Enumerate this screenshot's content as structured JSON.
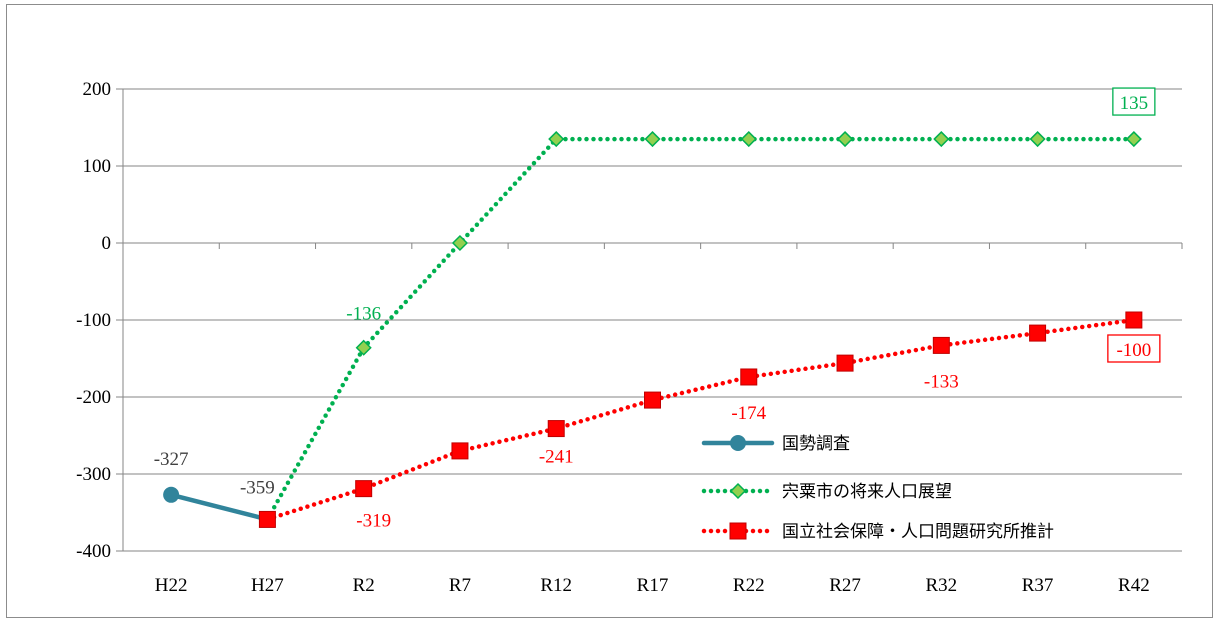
{
  "chart_data": {
    "type": "line",
    "categories": [
      "H22",
      "H27",
      "R2",
      "R7",
      "R12",
      "R17",
      "R22",
      "R27",
      "R32",
      "R37",
      "R42"
    ],
    "ylim": [
      -400,
      200
    ],
    "yticks": [
      200,
      100,
      0,
      -100,
      -200,
      -300,
      -400
    ],
    "ytick_labels": [
      "200",
      "100",
      "0",
      "-100",
      "-200",
      "-300",
      "-400"
    ],
    "grid": "horizontal",
    "legend_position": "bottom-right",
    "series": [
      {
        "name": "国勢調査",
        "color": "#31849b",
        "marker": "circle",
        "line": "solid",
        "values": [
          -327,
          -359,
          null,
          null,
          null,
          null,
          null,
          null,
          null,
          null,
          null
        ]
      },
      {
        "name": "宍粟市の将来人口展望",
        "color": "#00b050",
        "marker_fill": "#92d050",
        "marker": "diamond",
        "line": "dotted",
        "values": [
          null,
          -359,
          -136,
          0,
          135,
          135,
          135,
          135,
          135,
          135,
          135
        ]
      },
      {
        "name": "国立社会保障・人口問題研究所推計",
        "color": "#ff0000",
        "marker": "square",
        "line": "dotted",
        "values": [
          null,
          -359,
          -319,
          -270,
          -241,
          -204,
          -174,
          -156,
          -133,
          -117,
          -100
        ]
      }
    ],
    "data_labels": [
      {
        "series": 0,
        "index": 0,
        "text": "-327",
        "color": "#404040",
        "boxed": false
      },
      {
        "series": 0,
        "index": 1,
        "text": "-359",
        "color": "#404040",
        "boxed": false
      },
      {
        "series": 1,
        "index": 2,
        "text": "-136",
        "color": "#00b050",
        "boxed": false
      },
      {
        "series": 1,
        "index": 10,
        "text": "135",
        "color": "#00b050",
        "boxed": true
      },
      {
        "series": 2,
        "index": 2,
        "text": "-319",
        "color": "#ff0000",
        "boxed": false
      },
      {
        "series": 2,
        "index": 4,
        "text": "-241",
        "color": "#ff0000",
        "boxed": false
      },
      {
        "series": 2,
        "index": 6,
        "text": "-174",
        "color": "#ff0000",
        "boxed": false
      },
      {
        "series": 2,
        "index": 8,
        "text": "-133",
        "color": "#ff0000",
        "boxed": false
      },
      {
        "series": 2,
        "index": 10,
        "text": "-100",
        "color": "#ff0000",
        "boxed": true
      }
    ]
  }
}
